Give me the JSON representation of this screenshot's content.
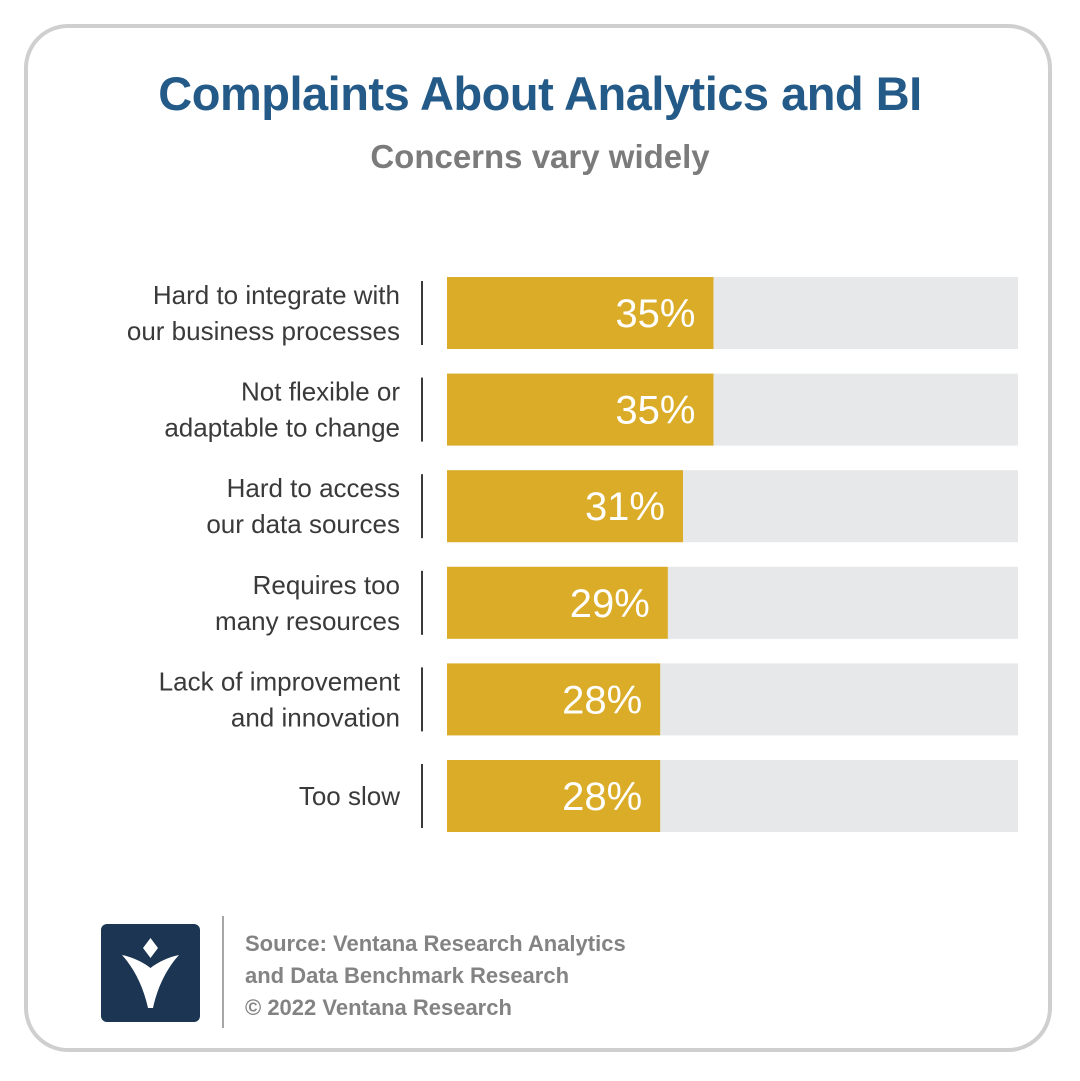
{
  "header": {
    "title": "Complaints About Analytics and BI",
    "subtitle": "Concerns vary widely"
  },
  "chart_data": {
    "type": "bar",
    "orientation": "horizontal",
    "categories": [
      [
        "Hard to integrate with",
        "our business processes"
      ],
      [
        "Not flexible or",
        "adaptable to change"
      ],
      [
        "Hard to access",
        "our data sources"
      ],
      [
        "Requires too",
        "many resources"
      ],
      [
        "Lack of improvement",
        "and innovation"
      ],
      [
        "Too slow"
      ]
    ],
    "values": [
      35,
      35,
      31,
      29,
      28,
      28
    ],
    "value_labels": [
      "35%",
      "35%",
      "31%",
      "29%",
      "28%",
      "28%"
    ],
    "xlim": [
      0,
      75
    ],
    "bar_color": "#dbac27",
    "track_color": "#e7e8e9",
    "grid": false,
    "legend": "none"
  },
  "footer": {
    "source_lines": [
      "Source: Ventana Research Analytics",
      "and Data Benchmark Research",
      "© 2022 Ventana Research"
    ],
    "logo_icon": "ventana-logo-icon",
    "logo_color": "#1b3552"
  }
}
